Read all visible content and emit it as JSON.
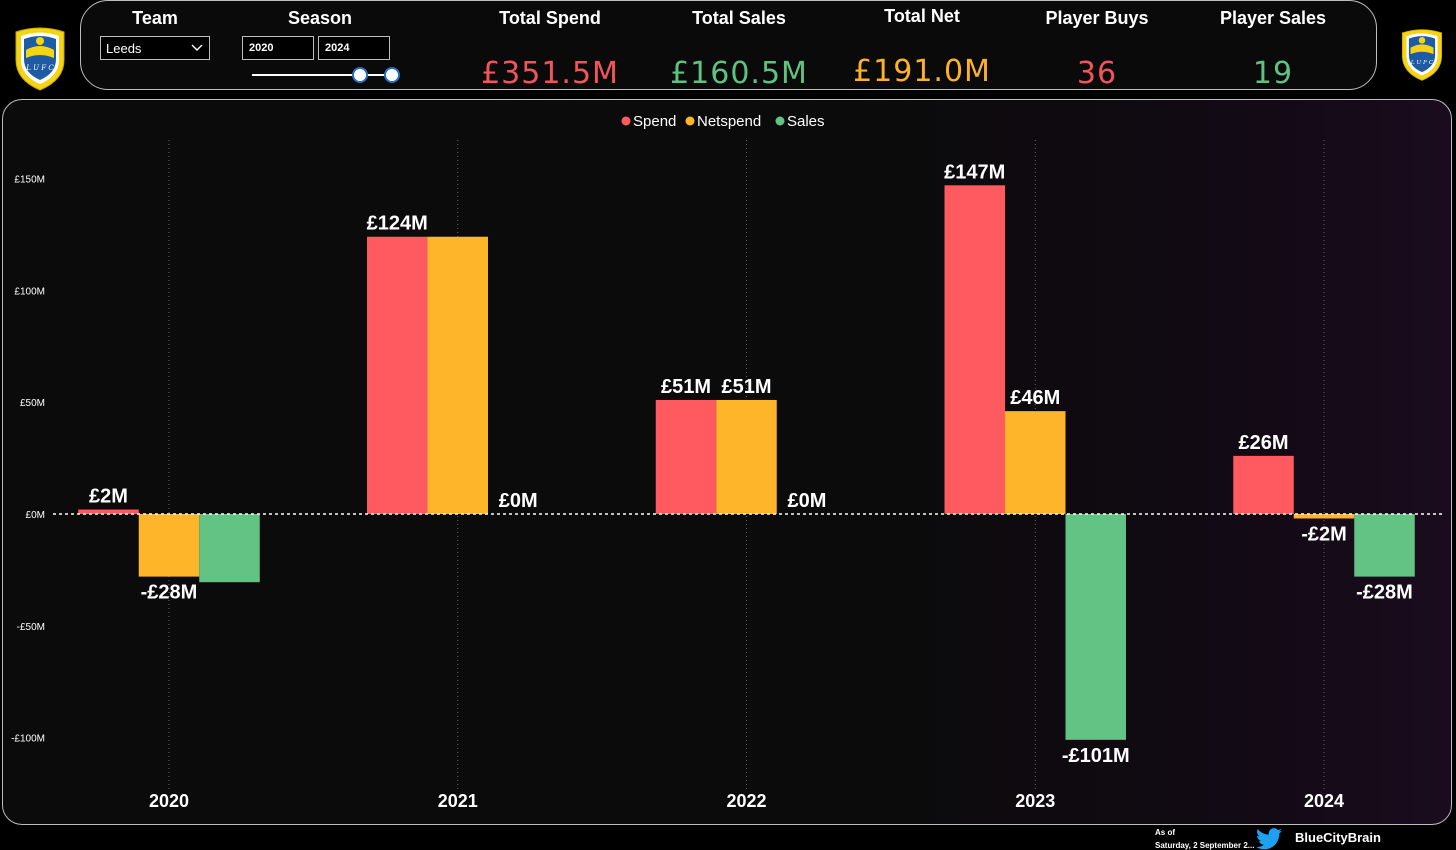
{
  "header": {
    "team_label": "Team",
    "team_value": "Leeds",
    "season_label": "Season",
    "season_from": "2020",
    "season_to": "2024",
    "kpis": [
      {
        "label": "Total Spend",
        "value": "£351.5M",
        "color": "#f2545b"
      },
      {
        "label": "Total Sales",
        "value": "£160.5M",
        "color": "#5ec283"
      },
      {
        "label": "Total Net",
        "value": "£191.0M",
        "color": "#fbb12a"
      },
      {
        "label": "Player Buys",
        "value": "36",
        "color": "#f2545b"
      },
      {
        "label": "Player Sales",
        "value": "19",
        "color": "#5ec283"
      }
    ]
  },
  "chart_data": {
    "type": "bar",
    "categories": [
      "2020",
      "2021",
      "2022",
      "2023",
      "2024"
    ],
    "series": [
      {
        "name": "Spend",
        "color": "#ff5a5f",
        "values": [
          2,
          124,
          51,
          147,
          26
        ]
      },
      {
        "name": "Netspend",
        "color": "#ffb52a",
        "values": [
          -28,
          124,
          51,
          46,
          -2
        ]
      },
      {
        "name": "Sales",
        "color": "#63c384",
        "values": [
          -30.5,
          0,
          0,
          -101,
          -28
        ]
      }
    ],
    "data_labels": [
      [
        "£2M",
        "-£28M",
        ""
      ],
      [
        "£124M",
        "",
        "£0M"
      ],
      [
        "£51M",
        "£51M",
        "£0M"
      ],
      [
        "£147M",
        "£46M",
        "-£101M"
      ],
      [
        "£26M",
        "-£2M",
        "-£28M"
      ]
    ],
    "y_ticks": [
      150,
      100,
      50,
      0,
      -50,
      -100
    ],
    "y_tick_labels": [
      "£150M",
      "£100M",
      "£50M",
      "£0M",
      "-£50M",
      "-£100M"
    ],
    "ylim": [
      -120,
      160
    ],
    "legend_position": "top-center",
    "grid": "vertical dotted per category"
  },
  "footer": {
    "as_of_label": "As of",
    "as_of_date": "Saturday, 2 September 2...",
    "handle": "BlueCityBrain"
  },
  "colors": {
    "spend": "#ff5a5f",
    "netspend": "#ffb52a",
    "sales": "#63c384",
    "crest_yellow": "#f5d416",
    "crest_blue": "#1d5ba4"
  }
}
